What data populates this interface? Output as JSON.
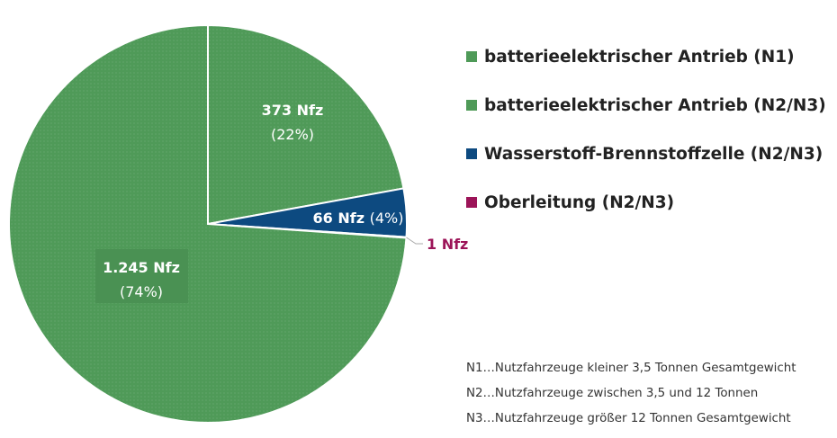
{
  "colors": {
    "green": "#4f9a58",
    "blue": "#0d4a80",
    "magenta": "#9c1458"
  },
  "chart_data": {
    "type": "pie",
    "series": [
      {
        "name": "batterieelektrischer Antrieb (N1)",
        "label": "1.245 Nfz",
        "pct_label": "(74%)",
        "value": 1245,
        "color": "#4f9a58"
      },
      {
        "name": "batterieelektrischer Antrieb (N2/N3)",
        "label": "373 Nfz",
        "pct_label": "(22%)",
        "value": 373,
        "color": "#4f9a58"
      },
      {
        "name": "Wasserstoff-Brennstoffzelle (N2/N3)",
        "label": "66 Nfz",
        "pct_label": "(4%)",
        "value": 66,
        "color": "#0d4a80"
      },
      {
        "name": "Oberleitung (N2/N3)",
        "label": "1 Nfz",
        "pct_label": "",
        "value": 1,
        "color": "#9c1458"
      }
    ]
  },
  "legend": [
    {
      "label": "batterieelektrischer Antrieb (N1)",
      "color": "#4f9a58"
    },
    {
      "label": "batterieelektrischer Antrieb (N2/N3)",
      "color": "#4f9a58"
    },
    {
      "label": "Wasserstoff-Brennstoffzelle (N2/N3)",
      "color": "#0d4a80"
    },
    {
      "label": "Oberleitung (N2/N3)",
      "color": "#9c1458"
    }
  ],
  "notes": [
    "N1…Nutzfahrzeuge kleiner 3,5 Tonnen Gesamtgewicht",
    "N2…Nutzfahrzeuge zwischen 3,5 und 12 Tonnen",
    "N3…Nutzfahrzeuge größer 12 Tonnen Gesamtgewicht"
  ]
}
